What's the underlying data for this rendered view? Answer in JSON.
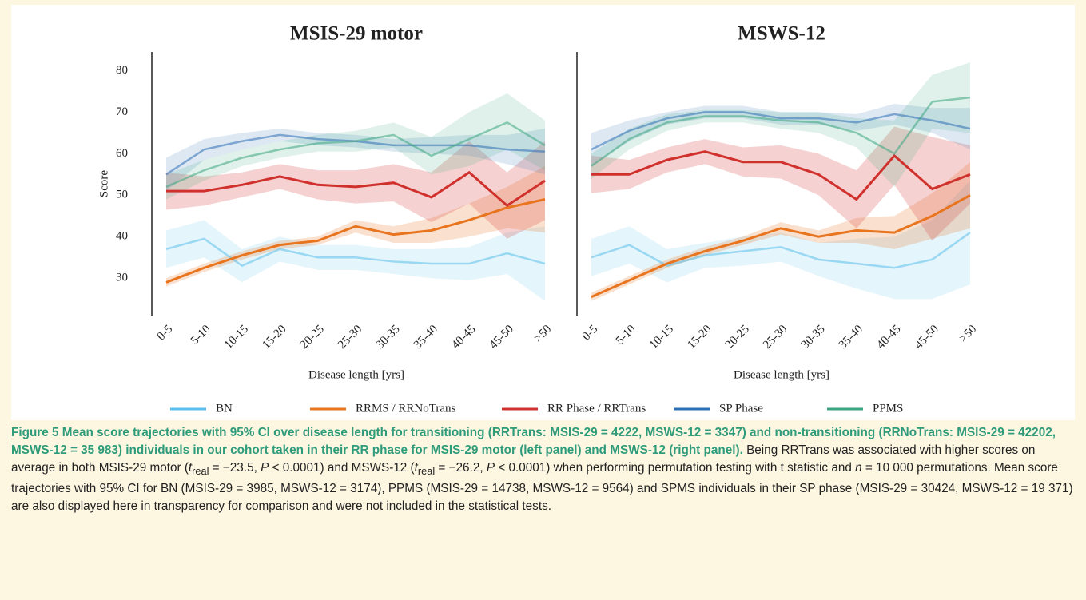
{
  "chart_data": [
    {
      "type": "line",
      "title": "MSIS-29 motor",
      "ylabel": "Score",
      "xlabel": "Disease length [yrs]",
      "categories": [
        "0-5",
        "5-10",
        "10-15",
        "15-20",
        "20-25",
        "25-30",
        "30-35",
        "35-40",
        "40-45",
        "45-50",
        ">50"
      ],
      "ylim": [
        21,
        84.5
      ],
      "yticks": [
        30,
        40,
        50,
        60,
        70,
        80
      ],
      "series": [
        {
          "name": "BN",
          "color": "#5bbfea",
          "faded": true,
          "values": [
            37,
            39.5,
            33,
            37,
            35,
            35,
            34,
            33.5,
            33.5,
            36,
            33.5
          ],
          "lower": [
            32.5,
            35,
            29,
            34,
            32,
            32,
            31,
            30,
            29.5,
            31,
            24.5
          ],
          "upper": [
            41.5,
            44,
            37,
            40,
            38,
            38,
            37,
            37,
            37.5,
            41,
            42.5
          ]
        },
        {
          "name": "RRMS / RRNoTrans",
          "color": "#e8741e",
          "faded": false,
          "values": [
            29,
            32.5,
            35.5,
            38,
            39,
            42.5,
            40.5,
            41.5,
            44,
            47,
            49
          ],
          "lower": [
            28,
            31.5,
            34.5,
            37,
            38,
            41,
            38.5,
            38.5,
            40,
            42,
            41
          ],
          "upper": [
            30,
            33.5,
            36.5,
            39,
            40,
            44,
            42.5,
            44.5,
            48,
            52,
            57
          ]
        },
        {
          "name": "RR Phase / RRTrans",
          "color": "#d0312d",
          "faded": false,
          "values": [
            51,
            51,
            52.5,
            54.5,
            52.5,
            52,
            53,
            49.5,
            55.5,
            47.5,
            53.5
          ],
          "lower": [
            46.5,
            47.5,
            49.5,
            51.5,
            49,
            48,
            48.5,
            43.5,
            48,
            39.5,
            44
          ],
          "upper": [
            55.5,
            54.5,
            55.5,
            57.5,
            56,
            56,
            57.5,
            55.5,
            63,
            55.5,
            63
          ]
        },
        {
          "name": "SP Phase",
          "color": "#2e6eb5",
          "faded": true,
          "values": [
            55,
            61,
            63,
            64.5,
            63.5,
            63,
            62,
            62,
            62,
            61,
            60.5
          ],
          "lower": [
            51,
            58.5,
            61,
            63,
            62,
            61.5,
            60.5,
            60,
            59.5,
            57.5,
            55
          ],
          "upper": [
            59,
            63.5,
            65,
            66,
            65,
            64.5,
            63.5,
            64,
            64.5,
            64.5,
            66
          ]
        },
        {
          "name": "PPMS",
          "color": "#3aa57e",
          "faded": true,
          "values": [
            52,
            56,
            59,
            61,
            62.5,
            63,
            64.5,
            59.5,
            63.5,
            67.5,
            62
          ],
          "lower": [
            49,
            53.5,
            57,
            59,
            60.5,
            60.5,
            61.5,
            55,
            57,
            61,
            56
          ],
          "upper": [
            55,
            58.5,
            61,
            63,
            64.5,
            65.5,
            67.5,
            64,
            70,
            74.5,
            68
          ]
        }
      ]
    },
    {
      "type": "line",
      "title": "MSWS-12",
      "xlabel": "Disease length [yrs]",
      "categories": [
        "0-5",
        "5-10",
        "10-15",
        "15-20",
        "20-25",
        "25-30",
        "30-35",
        "35-40",
        "40-45",
        "45-50",
        ">50"
      ],
      "ylim": [
        21,
        84.5
      ],
      "series": [
        {
          "color": "#5bbfea",
          "faded": true,
          "values": [
            35,
            38,
            33,
            35.5,
            36.5,
            37.5,
            34.5,
            33.5,
            32.5,
            34.5,
            41
          ],
          "lower": [
            30.5,
            33.5,
            29,
            32.5,
            33,
            34,
            30.5,
            27.5,
            25,
            25,
            28.5
          ],
          "upper": [
            39.5,
            42.5,
            37,
            38.5,
            40,
            41,
            38.5,
            39.5,
            40,
            44,
            53.5
          ]
        },
        {
          "color": "#e8741e",
          "faded": false,
          "values": [
            25.5,
            29.5,
            33.5,
            36.5,
            39,
            42,
            40,
            41.5,
            41,
            45,
            50
          ],
          "lower": [
            24.5,
            28.5,
            32.5,
            35.5,
            38,
            40.5,
            38.5,
            38.5,
            37,
            39.5,
            42
          ],
          "upper": [
            26.5,
            30.5,
            34.5,
            37.5,
            40,
            43.5,
            41.5,
            44.5,
            45,
            50.5,
            58
          ]
        },
        {
          "color": "#d0312d",
          "faded": false,
          "values": [
            55,
            55,
            58.5,
            60.5,
            58,
            58,
            55,
            49,
            59.5,
            51.5,
            55
          ],
          "lower": [
            50.5,
            51.5,
            55.5,
            57.5,
            54.5,
            54,
            50,
            42,
            52.5,
            39,
            48
          ],
          "upper": [
            59.5,
            58.5,
            61.5,
            63.5,
            61.5,
            62,
            60,
            56,
            66.5,
            64,
            62
          ]
        },
        {
          "color": "#2e6eb5",
          "faded": true,
          "values": [
            61,
            65.5,
            68.5,
            70,
            70,
            68.5,
            68.5,
            67.5,
            69.5,
            68,
            66
          ],
          "lower": [
            57,
            63,
            67,
            68.5,
            68.5,
            67,
            67,
            65.5,
            67,
            65,
            61
          ],
          "upper": [
            65,
            68,
            70,
            71.5,
            71.5,
            70,
            70,
            69.5,
            72,
            71,
            71
          ]
        },
        {
          "color": "#3aa57e",
          "faded": true,
          "values": [
            57,
            63.5,
            67.5,
            69,
            69,
            68,
            67.5,
            65,
            60,
            72.5,
            73.5
          ],
          "lower": [
            54,
            61,
            65.5,
            67.5,
            67.5,
            66,
            65,
            61.5,
            52,
            66,
            65
          ],
          "upper": [
            60,
            66,
            69.5,
            70.5,
            70.5,
            70,
            70,
            68.5,
            68,
            79,
            82
          ]
        }
      ]
    }
  ],
  "caption": {
    "lead": "Figure 5 Mean score trajectories with 95% CI over disease length for transitioning (RRTrans: MSIS-29 = 4222, MSWS-12 = 3347) and non-transitioning (RRNoTrans: MSIS-29 = 42202, MSWS-12 = 35 983) individuals in our cohort taken in their RR phase for MSIS-29 motor (left panel) and MSWS-12 (right panel).",
    "segments": [
      " Being RRTrans was associated with higher scores on average in both MSIS-29 motor (",
      "t",
      "real",
      " = −23.5, ",
      "P",
      " < 0.0001) and MSWS-12 (",
      "t",
      "real",
      " = −26.2, ",
      "P",
      " < 0.0001) when performing permutation testing with t statistic and ",
      "n",
      " = 10 000 permutations. Mean score trajectories with 95% CI for BN (MSIS-29 = 3985, MSWS-12 = 3174), PPMS (MSIS-29 = 14738, MSWS-12 = 9564) and SPMS individuals in their SP phase (MSIS-29 = 30424, MSWS-12 = 19 371) are also displayed here in transparency for comparison and were not included in the statistical tests."
    ]
  }
}
